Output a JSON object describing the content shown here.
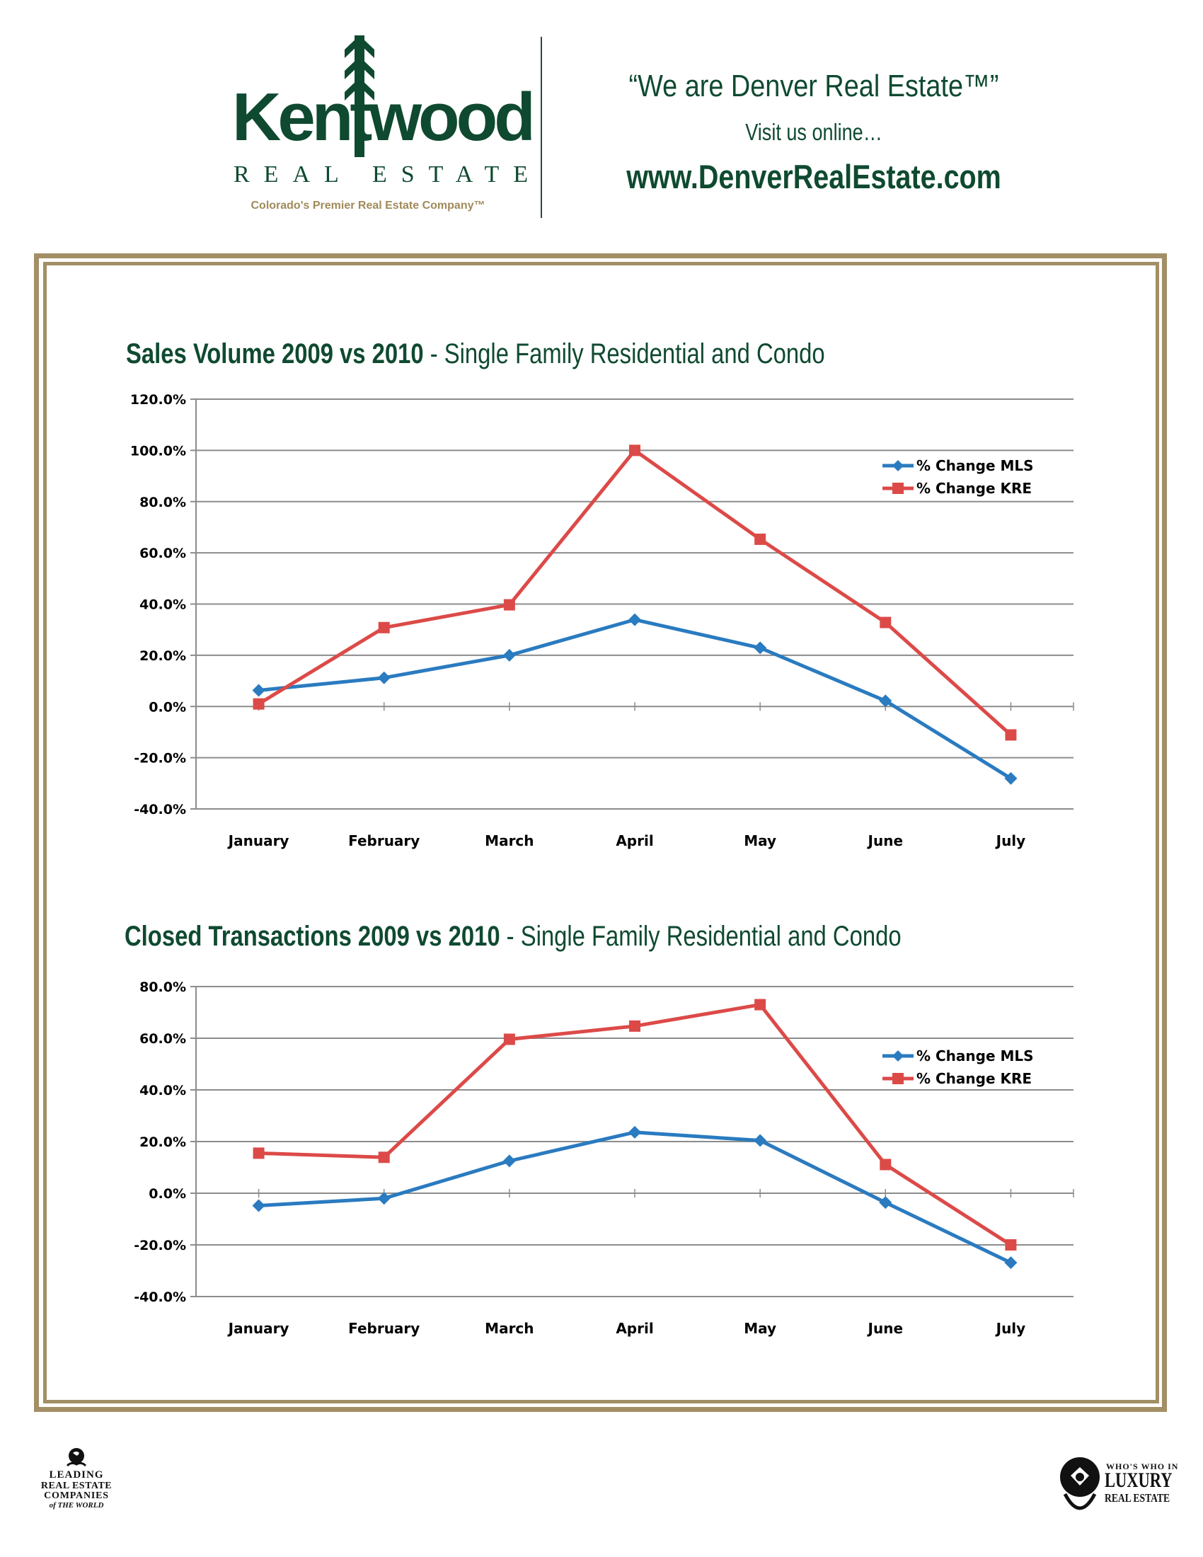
{
  "header": {
    "logo_word": "Kentwood",
    "logo_subtitle": "REAL ESTATE",
    "logo_tagline": "Colorado's Premier Real Estate Company™",
    "slogan": "“We are Denver Real Estate™”",
    "visit_text": "Visit us online…",
    "website": "www.DenverRealEstate.com"
  },
  "colors": {
    "brand_green": "#0f4a30",
    "brand_gold": "#a38f66",
    "series_mls": "#2a7bc0",
    "series_kre": "#dc4a48",
    "gridline": "#8c8c8c"
  },
  "chart_data": [
    {
      "type": "line",
      "title_bold": "Sales Volume 2009 vs 2010",
      "title_rest": " - Single Family Residential and Condo",
      "xlabel": "",
      "ylabel": "",
      "categories": [
        "January",
        "February",
        "March",
        "April",
        "May",
        "June",
        "July"
      ],
      "ylim": [
        -40,
        120
      ],
      "yticks": [
        120,
        100,
        80,
        60,
        40,
        20,
        0,
        -20,
        -40
      ],
      "ytick_labels": [
        "120.0%",
        "100.0%",
        "80.0%",
        "60.0%",
        "40.0%",
        "20.0%",
        "0.0%",
        "-20.0%",
        "-40.0%"
      ],
      "grid": true,
      "legend_position": "top-right",
      "series": [
        {
          "name": "% Change MLS",
          "marker": "diamond",
          "values": [
            6.3,
            11.2,
            20.0,
            33.9,
            22.9,
            2.2,
            -28.1
          ]
        },
        {
          "name": "% Change KRE",
          "marker": "square",
          "values": [
            1.0,
            30.8,
            39.7,
            100.0,
            65.3,
            32.8,
            -11.1
          ]
        }
      ]
    },
    {
      "type": "line",
      "title_bold": "Closed Transactions 2009 vs 2010",
      "title_rest": " - Single Family Residential and Condo",
      "xlabel": "",
      "ylabel": "",
      "categories": [
        "January",
        "February",
        "March",
        "April",
        "May",
        "June",
        "July"
      ],
      "ylim": [
        -40,
        80
      ],
      "yticks": [
        80,
        60,
        40,
        20,
        0,
        -20,
        -40
      ],
      "ytick_labels": [
        "80.0%",
        "60.0%",
        "40.0%",
        "20.0%",
        "0.0%",
        "-20.0%",
        "-40.0%"
      ],
      "grid": true,
      "legend_position": "top-right",
      "series": [
        {
          "name": "% Change MLS",
          "marker": "diamond",
          "values": [
            -4.8,
            -2.0,
            12.5,
            23.6,
            20.4,
            -3.6,
            -26.9
          ]
        },
        {
          "name": "% Change KRE",
          "marker": "square",
          "values": [
            15.5,
            13.9,
            59.6,
            64.7,
            73.0,
            11.1,
            -20.0
          ]
        }
      ]
    }
  ],
  "footer": {
    "left_logo": {
      "line1": "LEADING",
      "line2": "REAL ESTATE",
      "line3": "COMPANIES",
      "line4": "of THE WORLD"
    },
    "right_logo": {
      "line1": "WHO'S WHO IN",
      "line2": "LUXURY",
      "line3": "REAL ESTATE"
    }
  }
}
